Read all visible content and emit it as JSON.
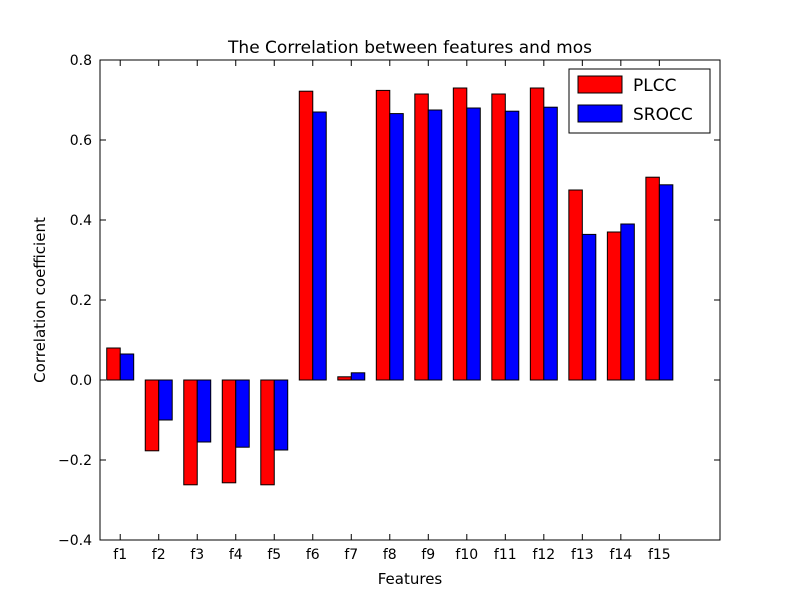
{
  "chart_data": {
    "type": "bar",
    "title": "The Correlation between features and mos",
    "xlabel": "Features",
    "ylabel": "Correlation coefficient",
    "categories": [
      "f1",
      "f2",
      "f3",
      "f4",
      "f5",
      "f6",
      "f7",
      "f8",
      "f9",
      "f10",
      "f11",
      "f12",
      "f13",
      "f14",
      "f15"
    ],
    "ylim": [
      -0.4,
      0.8
    ],
    "yticks": [
      -0.4,
      -0.2,
      0.0,
      0.2,
      0.4,
      0.6,
      0.8
    ],
    "ytick_labels": [
      "−0.4",
      "−0.2",
      "0.0",
      "0.2",
      "0.4",
      "0.6",
      "0.8"
    ],
    "grid": false,
    "legend_position": "top-right",
    "series": [
      {
        "name": "PLCC",
        "color": "#ff0000",
        "values": [
          0.08,
          -0.177,
          -0.262,
          -0.257,
          -0.262,
          0.722,
          0.008,
          0.724,
          0.715,
          0.73,
          0.715,
          0.73,
          0.475,
          0.37,
          0.507
        ]
      },
      {
        "name": "SROCC",
        "color": "#0000ff",
        "values": [
          0.065,
          -0.1,
          -0.155,
          -0.168,
          -0.175,
          0.67,
          0.018,
          0.666,
          0.675,
          0.68,
          0.672,
          0.682,
          0.364,
          0.39,
          0.488
        ]
      }
    ]
  }
}
